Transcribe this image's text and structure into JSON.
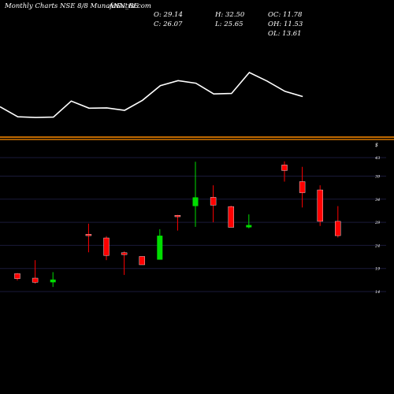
{
  "header": {
    "site": "Monthly Charts NSE 8/8 MunafaSutra.com",
    "symbol": "ANN_BE",
    "open": "O: 29.14",
    "high": "H: 32.50",
    "oc": "OC: 11.78",
    "close": "C: 26.07",
    "low": "L: 25.65",
    "oh": "OH: 11.53",
    "ol": "OL: 13.61"
  },
  "chart_data": {
    "type": "candlestick",
    "title": "ANN_BE",
    "axis_unit_label": "$",
    "yticks": [
      14,
      19,
      24,
      29,
      34,
      39,
      43
    ],
    "ylim": [
      14,
      45
    ],
    "grid": true,
    "colors": {
      "up": "#00dd00",
      "down": "#ff0000",
      "separator": "#ff8c00",
      "line": "#ffffff",
      "grid": "#1a1a3a"
    },
    "candles": [
      {
        "open": 17.9,
        "close": 16.8,
        "high": 18.0,
        "low": 16.4
      },
      {
        "open": 16.9,
        "close": 16.0,
        "high": 20.8,
        "low": 15.7
      },
      {
        "open": 16.0,
        "close": 16.6,
        "high": 18.2,
        "low": 15.0
      },
      null,
      {
        "open": 26.4,
        "close": 26.1,
        "high": 28.7,
        "low": 22.5
      },
      {
        "open": 25.6,
        "close": 21.8,
        "high": 26.0,
        "low": 20.8
      },
      {
        "open": 22.4,
        "close": 22.0,
        "high": 22.7,
        "low": 17.6
      },
      {
        "open": 21.6,
        "close": 19.8,
        "high": 21.6,
        "low": 19.8
      },
      {
        "open": 20.9,
        "close": 26.1,
        "high": 27.5,
        "low": 20.9
      },
      {
        "open": 30.5,
        "close": 30.2,
        "high": 30.6,
        "low": 27.2
      },
      {
        "open": 32.5,
        "close": 34.4,
        "high": 42.1,
        "low": 28.0
      },
      {
        "open": 34.4,
        "close": 32.7,
        "high": 37.0,
        "low": 29.0
      },
      {
        "open": 32.4,
        "close": 27.9,
        "high": 32.6,
        "low": 27.9
      },
      {
        "open": 27.9,
        "close": 28.4,
        "high": 30.7,
        "low": 27.7
      },
      null,
      {
        "open": 41.4,
        "close": 40.2,
        "high": 42.2,
        "low": 37.8
      },
      {
        "open": 37.8,
        "close": 35.4,
        "high": 41.0,
        "low": 32.2
      },
      {
        "open": 36.0,
        "close": 29.2,
        "high": 37.0,
        "low": 28.2
      },
      {
        "open": 29.2,
        "close": 26.1,
        "high": 32.5,
        "low": 25.7
      }
    ],
    "line_series": [
      22.0,
      15.0,
      14.5,
      14.8,
      26.0,
      21.0,
      21.2,
      19.5,
      26.5,
      36.8,
      40.3,
      38.5,
      31.0,
      31.3,
      46.0,
      40.0,
      32.8,
      29.2
    ]
  }
}
